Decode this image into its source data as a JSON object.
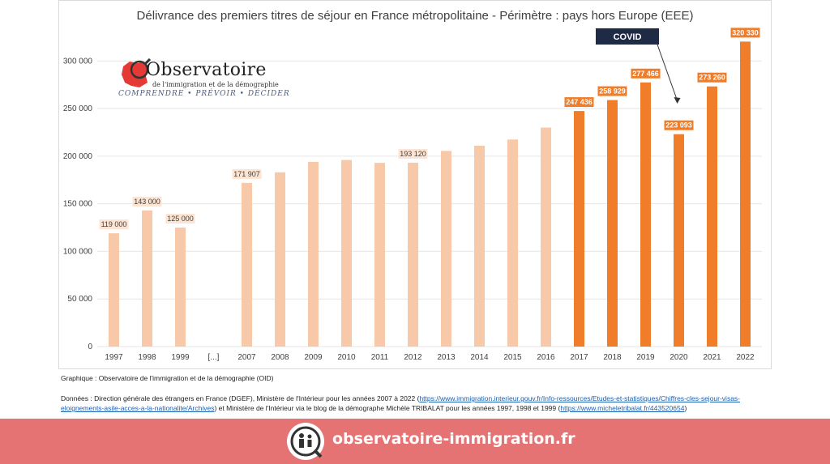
{
  "chart_data": {
    "type": "bar",
    "title": "Délivrance des premiers titres de séjour en France métropolitaine - Périmètre : pays hors Europe (EEE)",
    "categories": [
      "1997",
      "1998",
      "1999",
      "[...]",
      "2007",
      "2008",
      "2009",
      "2010",
      "2011",
      "2012",
      "2013",
      "2014",
      "2015",
      "2016",
      "2017",
      "2018",
      "2019",
      "2020",
      "2021",
      "2022"
    ],
    "values": [
      119000,
      143000,
      125000,
      null,
      171907,
      183000,
      194000,
      196000,
      193000,
      193120,
      205500,
      211000,
      217500,
      230000,
      247436,
      258929,
      277466,
      223093,
      273260,
      320330
    ],
    "labels": [
      "119 000",
      "143 000",
      "125 000",
      "",
      "171 907",
      "",
      "",
      "",
      "",
      "193 120",
      "",
      "",
      "",
      "",
      "247 436",
      "258 929",
      "277 466",
      "223 093",
      "273 260",
      "320 330"
    ],
    "highlight_from": "2017",
    "colors": {
      "light": "#f8c9a8",
      "dark": "#ef7d2a",
      "covid_box": "#1f2a44"
    },
    "yticks": [
      "0",
      "50 000",
      "100 000",
      "150 000",
      "200 000",
      "250 000",
      "300 000"
    ],
    "ylim": [
      0,
      330000
    ],
    "annotation": {
      "text": "COVID",
      "target": "2020"
    },
    "xlabel": "",
    "ylabel": ""
  },
  "logo": {
    "name": "Observatoire",
    "subtitle": "de l'immigration et de la démographie",
    "tagline": "COMPRENDRE • PRÉVOIR • DÉCIDER"
  },
  "caption": {
    "line1": "Graphique : Observatoire de l'immigration et de la démographie (OID)",
    "line2_prefix": "Données : Direction générale des étrangers en France (DGEF), Ministère de l'Intérieur pour les années 2007 à 2022 (",
    "link1": "https://www.immigration.interieur.gouv.fr/Info-ressources/Etudes-et-statistiques/Chiffres-cles-sejour-visas-eloignements-asile-acces-a-la-nationalite/Archives",
    "line2_mid": ") et Ministère de l'Intérieur via le blog de la démographe Michèle TRIBALAT pour les années 1997, 1998 et 1999 (",
    "link2": "https://www.micheletribalat.fr/443520654",
    "line2_suffix": ")"
  },
  "footer": {
    "site": "observatoire-immigration.fr",
    "background": "#e57373"
  }
}
